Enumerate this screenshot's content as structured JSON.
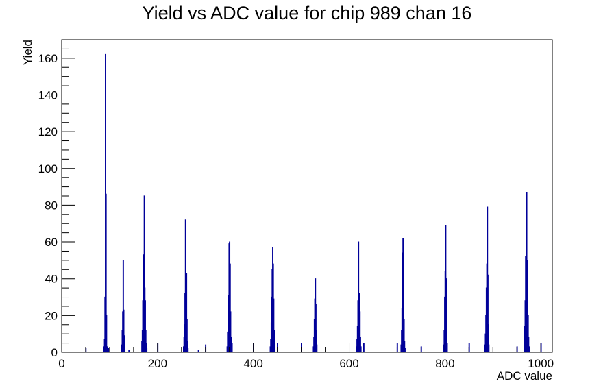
{
  "chart_data": {
    "type": "histogram",
    "title": "Yield vs ADC value for chip 989 chan 16",
    "xlabel": "ADC value",
    "ylabel": "Yield",
    "xlim": [
      0,
      1024
    ],
    "ylim": [
      0,
      170
    ],
    "x_ticks": [
      0,
      200,
      400,
      600,
      800,
      1000
    ],
    "y_ticks": [
      0,
      20,
      40,
      60,
      80,
      100,
      120,
      140,
      160
    ],
    "line_color": "#000099",
    "grid": false,
    "bins": [
      {
        "x": 50,
        "y": 2
      },
      {
        "x": 88,
        "y": 3
      },
      {
        "x": 89,
        "y": 7
      },
      {
        "x": 90,
        "y": 30
      },
      {
        "x": 91,
        "y": 162
      },
      {
        "x": 92,
        "y": 86
      },
      {
        "x": 93,
        "y": 20
      },
      {
        "x": 94,
        "y": 3
      },
      {
        "x": 97,
        "y": 2
      },
      {
        "x": 125,
        "y": 4
      },
      {
        "x": 126,
        "y": 12
      },
      {
        "x": 127,
        "y": 22
      },
      {
        "x": 128,
        "y": 50
      },
      {
        "x": 129,
        "y": 23
      },
      {
        "x": 130,
        "y": 9
      },
      {
        "x": 131,
        "y": 3
      },
      {
        "x": 140,
        "y": 1
      },
      {
        "x": 167,
        "y": 6
      },
      {
        "x": 168,
        "y": 12
      },
      {
        "x": 169,
        "y": 28
      },
      {
        "x": 170,
        "y": 53
      },
      {
        "x": 171,
        "y": 32
      },
      {
        "x": 172,
        "y": 85
      },
      {
        "x": 173,
        "y": 35
      },
      {
        "x": 174,
        "y": 28
      },
      {
        "x": 175,
        "y": 12
      },
      {
        "x": 176,
        "y": 5
      },
      {
        "x": 177,
        "y": 2
      },
      {
        "x": 200,
        "y": 5
      },
      {
        "x": 254,
        "y": 3
      },
      {
        "x": 255,
        "y": 8
      },
      {
        "x": 256,
        "y": 15
      },
      {
        "x": 257,
        "y": 32
      },
      {
        "x": 258,
        "y": 72
      },
      {
        "x": 259,
        "y": 28
      },
      {
        "x": 260,
        "y": 43
      },
      {
        "x": 261,
        "y": 18
      },
      {
        "x": 262,
        "y": 6
      },
      {
        "x": 263,
        "y": 2
      },
      {
        "x": 285,
        "y": 1
      },
      {
        "x": 300,
        "y": 4
      },
      {
        "x": 345,
        "y": 3
      },
      {
        "x": 346,
        "y": 11
      },
      {
        "x": 347,
        "y": 31
      },
      {
        "x": 348,
        "y": 20
      },
      {
        "x": 349,
        "y": 59
      },
      {
        "x": 350,
        "y": 60
      },
      {
        "x": 351,
        "y": 48
      },
      {
        "x": 352,
        "y": 22
      },
      {
        "x": 353,
        "y": 8
      },
      {
        "x": 354,
        "y": 3
      },
      {
        "x": 355,
        "y": 5
      },
      {
        "x": 400,
        "y": 5
      },
      {
        "x": 435,
        "y": 3
      },
      {
        "x": 436,
        "y": 7
      },
      {
        "x": 437,
        "y": 16
      },
      {
        "x": 438,
        "y": 30
      },
      {
        "x": 439,
        "y": 45
      },
      {
        "x": 440,
        "y": 57
      },
      {
        "x": 441,
        "y": 48
      },
      {
        "x": 442,
        "y": 29
      },
      {
        "x": 443,
        "y": 12
      },
      {
        "x": 444,
        "y": 4
      },
      {
        "x": 450,
        "y": 5
      },
      {
        "x": 500,
        "y": 5
      },
      {
        "x": 525,
        "y": 3
      },
      {
        "x": 526,
        "y": 8
      },
      {
        "x": 527,
        "y": 18
      },
      {
        "x": 528,
        "y": 29
      },
      {
        "x": 529,
        "y": 40
      },
      {
        "x": 530,
        "y": 26
      },
      {
        "x": 531,
        "y": 12
      },
      {
        "x": 532,
        "y": 4
      },
      {
        "x": 615,
        "y": 3
      },
      {
        "x": 616,
        "y": 7
      },
      {
        "x": 617,
        "y": 14
      },
      {
        "x": 618,
        "y": 28
      },
      {
        "x": 619,
        "y": 60
      },
      {
        "x": 620,
        "y": 20
      },
      {
        "x": 621,
        "y": 32
      },
      {
        "x": 622,
        "y": 22
      },
      {
        "x": 623,
        "y": 8
      },
      {
        "x": 624,
        "y": 3
      },
      {
        "x": 630,
        "y": 5
      },
      {
        "x": 700,
        "y": 5
      },
      {
        "x": 708,
        "y": 4
      },
      {
        "x": 709,
        "y": 12
      },
      {
        "x": 710,
        "y": 24
      },
      {
        "x": 711,
        "y": 54
      },
      {
        "x": 712,
        "y": 62
      },
      {
        "x": 713,
        "y": 36
      },
      {
        "x": 714,
        "y": 18
      },
      {
        "x": 715,
        "y": 6
      },
      {
        "x": 716,
        "y": 2
      },
      {
        "x": 750,
        "y": 3
      },
      {
        "x": 797,
        "y": 4
      },
      {
        "x": 798,
        "y": 12
      },
      {
        "x": 799,
        "y": 30
      },
      {
        "x": 800,
        "y": 44
      },
      {
        "x": 801,
        "y": 69
      },
      {
        "x": 802,
        "y": 40
      },
      {
        "x": 803,
        "y": 16
      },
      {
        "x": 804,
        "y": 5
      },
      {
        "x": 850,
        "y": 5
      },
      {
        "x": 883,
        "y": 4
      },
      {
        "x": 884,
        "y": 10
      },
      {
        "x": 885,
        "y": 20
      },
      {
        "x": 886,
        "y": 35
      },
      {
        "x": 887,
        "y": 48
      },
      {
        "x": 888,
        "y": 79
      },
      {
        "x": 889,
        "y": 42
      },
      {
        "x": 890,
        "y": 15
      },
      {
        "x": 891,
        "y": 4
      },
      {
        "x": 950,
        "y": 3
      },
      {
        "x": 965,
        "y": 6
      },
      {
        "x": 966,
        "y": 14
      },
      {
        "x": 967,
        "y": 28
      },
      {
        "x": 968,
        "y": 52
      },
      {
        "x": 969,
        "y": 40
      },
      {
        "x": 970,
        "y": 87
      },
      {
        "x": 971,
        "y": 50
      },
      {
        "x": 972,
        "y": 25
      },
      {
        "x": 973,
        "y": 20
      },
      {
        "x": 974,
        "y": 8
      },
      {
        "x": 975,
        "y": 3
      },
      {
        "x": 1000,
        "y": 5
      }
    ]
  }
}
